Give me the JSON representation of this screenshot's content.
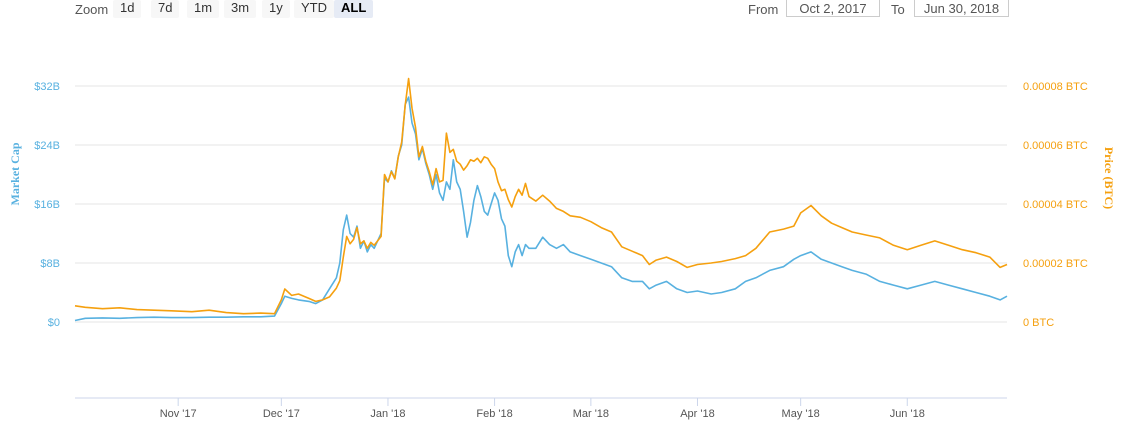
{
  "zoom": {
    "label": "Zoom",
    "buttons": [
      {
        "label": "1d",
        "active": false
      },
      {
        "label": "7d",
        "active": false
      },
      {
        "label": "1m",
        "active": false
      },
      {
        "label": "3m",
        "active": false
      },
      {
        "label": "1y",
        "active": false
      },
      {
        "label": "YTD",
        "active": false
      },
      {
        "label": "ALL",
        "active": true
      }
    ]
  },
  "range": {
    "from_label": "From",
    "from_value": "Oct 2, 2017",
    "to_label": "To",
    "to_value": "Jun 30, 2018"
  },
  "colors": {
    "market_cap": "#58b1e0",
    "price": "#f5a00f",
    "grid": "#e6e6e6",
    "axis": "#ccd6eb"
  },
  "chart_data": {
    "type": "line",
    "x_range": [
      "2017-10-02",
      "2018-06-30"
    ],
    "x_ticks": [
      {
        "date": "2017-11-01",
        "label": "Nov '17"
      },
      {
        "date": "2017-12-01",
        "label": "Dec '17"
      },
      {
        "date": "2018-01-01",
        "label": "Jan '18"
      },
      {
        "date": "2018-02-01",
        "label": "Feb '18"
      },
      {
        "date": "2018-03-01",
        "label": "Mar '18"
      },
      {
        "date": "2018-04-01",
        "label": "Apr '18"
      },
      {
        "date": "2018-05-01",
        "label": "May '18"
      },
      {
        "date": "2018-06-01",
        "label": "Jun '18"
      }
    ],
    "y_left": {
      "title": "Market Cap",
      "unit": "B USD",
      "range": [
        0,
        32
      ],
      "ticks": [
        {
          "value": 0,
          "label": "$0"
        },
        {
          "value": 8,
          "label": "$8B"
        },
        {
          "value": 16,
          "label": "$16B"
        },
        {
          "value": 24,
          "label": "$24B"
        },
        {
          "value": 32,
          "label": "$32B"
        }
      ]
    },
    "y_right": {
      "title": "Price (BTC)",
      "unit": "BTC",
      "range": [
        0,
        8e-05
      ],
      "ticks": [
        {
          "value": 0,
          "label": "0 BTC"
        },
        {
          "value": 2e-05,
          "label": "0.00002 BTC"
        },
        {
          "value": 4e-05,
          "label": "0.00004 BTC"
        },
        {
          "value": 6e-05,
          "label": "0.00006 BTC"
        },
        {
          "value": 8e-05,
          "label": "0.00008 BTC"
        }
      ]
    },
    "grid": true,
    "legend": "none",
    "series": [
      {
        "axis": "left",
        "points": [
          [
            "2017-10-02",
            0.2
          ],
          [
            "2017-10-05",
            0.5
          ],
          [
            "2017-10-10",
            0.55
          ],
          [
            "2017-10-15",
            0.5
          ],
          [
            "2017-10-20",
            0.6
          ],
          [
            "2017-10-25",
            0.65
          ],
          [
            "2017-10-30",
            0.6
          ],
          [
            "2017-11-05",
            0.6
          ],
          [
            "2017-11-10",
            0.65
          ],
          [
            "2017-11-15",
            0.65
          ],
          [
            "2017-11-20",
            0.7
          ],
          [
            "2017-11-25",
            0.7
          ],
          [
            "2017-11-29",
            0.8
          ],
          [
            "2017-12-01",
            2.5
          ],
          [
            "2017-12-02",
            3.5
          ],
          [
            "2017-12-04",
            3.2
          ],
          [
            "2017-12-06",
            3.0
          ],
          [
            "2017-12-09",
            2.8
          ],
          [
            "2017-12-11",
            2.5
          ],
          [
            "2017-12-13",
            3.0
          ],
          [
            "2017-12-15",
            4.5
          ],
          [
            "2017-12-17",
            6.0
          ],
          [
            "2017-12-18",
            8.0
          ],
          [
            "2017-12-19",
            12.5
          ],
          [
            "2017-12-20",
            14.5
          ],
          [
            "2017-12-21",
            12.0
          ],
          [
            "2017-12-22",
            11.5
          ],
          [
            "2017-12-23",
            13.0
          ],
          [
            "2017-12-24",
            10.0
          ],
          [
            "2017-12-25",
            11.0
          ],
          [
            "2017-12-26",
            9.5
          ],
          [
            "2017-12-27",
            10.5
          ],
          [
            "2017-12-28",
            10.0
          ],
          [
            "2017-12-29",
            11.0
          ],
          [
            "2017-12-30",
            12.0
          ],
          [
            "2017-12-31",
            19.5
          ],
          [
            "2018-01-01",
            19.0
          ],
          [
            "2018-01-02",
            20.5
          ],
          [
            "2018-01-03",
            19.5
          ],
          [
            "2018-01-04",
            22.5
          ],
          [
            "2018-01-05",
            24.0
          ],
          [
            "2018-01-06",
            29.5
          ],
          [
            "2018-01-07",
            30.5
          ],
          [
            "2018-01-08",
            27.0
          ],
          [
            "2018-01-09",
            25.5
          ],
          [
            "2018-01-10",
            22.0
          ],
          [
            "2018-01-11",
            23.5
          ],
          [
            "2018-01-12",
            21.5
          ],
          [
            "2018-01-13",
            20.0
          ],
          [
            "2018-01-14",
            18.0
          ],
          [
            "2018-01-15",
            20.0
          ],
          [
            "2018-01-16",
            17.5
          ],
          [
            "2018-01-17",
            16.5
          ],
          [
            "2018-01-18",
            19.0
          ],
          [
            "2018-01-19",
            18.0
          ],
          [
            "2018-01-20",
            22.0
          ],
          [
            "2018-01-21",
            19.0
          ],
          [
            "2018-01-22",
            18.0
          ],
          [
            "2018-01-23",
            15.0
          ],
          [
            "2018-01-24",
            11.5
          ],
          [
            "2018-01-25",
            13.5
          ],
          [
            "2018-01-26",
            16.5
          ],
          [
            "2018-01-27",
            18.5
          ],
          [
            "2018-01-28",
            17.0
          ],
          [
            "2018-01-29",
            15.0
          ],
          [
            "2018-01-30",
            14.5
          ],
          [
            "2018-01-31",
            16.0
          ],
          [
            "2018-02-01",
            17.5
          ],
          [
            "2018-02-02",
            16.5
          ],
          [
            "2018-02-03",
            14.0
          ],
          [
            "2018-02-04",
            13.0
          ],
          [
            "2018-02-05",
            9.0
          ],
          [
            "2018-02-06",
            7.5
          ],
          [
            "2018-02-07",
            9.5
          ],
          [
            "2018-02-08",
            10.5
          ],
          [
            "2018-02-09",
            9.0
          ],
          [
            "2018-02-10",
            10.5
          ],
          [
            "2018-02-11",
            10.0
          ],
          [
            "2018-02-13",
            10.0
          ],
          [
            "2018-02-15",
            11.5
          ],
          [
            "2018-02-17",
            10.5
          ],
          [
            "2018-02-19",
            10.0
          ],
          [
            "2018-02-21",
            10.5
          ],
          [
            "2018-02-23",
            9.5
          ],
          [
            "2018-02-26",
            9.0
          ],
          [
            "2018-03-01",
            8.5
          ],
          [
            "2018-03-04",
            8.0
          ],
          [
            "2018-03-07",
            7.5
          ],
          [
            "2018-03-10",
            6.0
          ],
          [
            "2018-03-13",
            5.5
          ],
          [
            "2018-03-16",
            5.5
          ],
          [
            "2018-03-18",
            4.5
          ],
          [
            "2018-03-20",
            5.0
          ],
          [
            "2018-03-23",
            5.5
          ],
          [
            "2018-03-26",
            4.5
          ],
          [
            "2018-03-29",
            4.0
          ],
          [
            "2018-04-01",
            4.2
          ],
          [
            "2018-04-05",
            3.8
          ],
          [
            "2018-04-08",
            4.0
          ],
          [
            "2018-04-12",
            4.5
          ],
          [
            "2018-04-15",
            5.5
          ],
          [
            "2018-04-18",
            6.0
          ],
          [
            "2018-04-22",
            7.0
          ],
          [
            "2018-04-26",
            7.5
          ],
          [
            "2018-04-29",
            8.5
          ],
          [
            "2018-05-01",
            9.0
          ],
          [
            "2018-05-04",
            9.5
          ],
          [
            "2018-05-07",
            8.5
          ],
          [
            "2018-05-10",
            8.0
          ],
          [
            "2018-05-13",
            7.5
          ],
          [
            "2018-05-16",
            7.0
          ],
          [
            "2018-05-20",
            6.5
          ],
          [
            "2018-05-24",
            5.5
          ],
          [
            "2018-05-28",
            5.0
          ],
          [
            "2018-06-01",
            4.5
          ],
          [
            "2018-06-05",
            5.0
          ],
          [
            "2018-06-09",
            5.5
          ],
          [
            "2018-06-13",
            5.0
          ],
          [
            "2018-06-17",
            4.5
          ],
          [
            "2018-06-21",
            4.0
          ],
          [
            "2018-06-25",
            3.5
          ],
          [
            "2018-06-28",
            3.0
          ],
          [
            "2018-06-30",
            3.5
          ]
        ]
      },
      {
        "axis": "right",
        "points": [
          [
            "2017-10-02",
            5.5e-06
          ],
          [
            "2017-10-05",
            5e-06
          ],
          [
            "2017-10-10",
            4.5e-06
          ],
          [
            "2017-10-15",
            4.8e-06
          ],
          [
            "2017-10-20",
            4.2e-06
          ],
          [
            "2017-10-25",
            4e-06
          ],
          [
            "2017-10-30",
            3.8e-06
          ],
          [
            "2017-11-05",
            3.5e-06
          ],
          [
            "2017-11-10",
            4e-06
          ],
          [
            "2017-11-15",
            3.2e-06
          ],
          [
            "2017-11-20",
            2.8e-06
          ],
          [
            "2017-11-25",
            3e-06
          ],
          [
            "2017-11-29",
            2.8e-06
          ],
          [
            "2017-12-01",
            7.5e-06
          ],
          [
            "2017-12-02",
            1.12e-05
          ],
          [
            "2017-12-04",
            9e-06
          ],
          [
            "2017-12-06",
            9.5e-06
          ],
          [
            "2017-12-09",
            8e-06
          ],
          [
            "2017-12-11",
            7e-06
          ],
          [
            "2017-12-13",
            7.5e-06
          ],
          [
            "2017-12-15",
            8.5e-06
          ],
          [
            "2017-12-17",
            1.15e-05
          ],
          [
            "2017-12-18",
            1.4e-05
          ],
          [
            "2017-12-19",
            2.2e-05
          ],
          [
            "2017-12-20",
            2.9e-05
          ],
          [
            "2017-12-21",
            2.65e-05
          ],
          [
            "2017-12-22",
            2.8e-05
          ],
          [
            "2017-12-23",
            3.2e-05
          ],
          [
            "2017-12-24",
            2.65e-05
          ],
          [
            "2017-12-25",
            2.75e-05
          ],
          [
            "2017-12-26",
            2.5e-05
          ],
          [
            "2017-12-27",
            2.7e-05
          ],
          [
            "2017-12-28",
            2.6e-05
          ],
          [
            "2017-12-29",
            2.75e-05
          ],
          [
            "2017-12-30",
            2.9e-05
          ],
          [
            "2017-12-31",
            5e-05
          ],
          [
            "2018-01-01",
            4.75e-05
          ],
          [
            "2018-01-02",
            5.1e-05
          ],
          [
            "2018-01-03",
            4.85e-05
          ],
          [
            "2018-01-04",
            5.6e-05
          ],
          [
            "2018-01-05",
            6.1e-05
          ],
          [
            "2018-01-06",
            7.35e-05
          ],
          [
            "2018-01-07",
            8.25e-05
          ],
          [
            "2018-01-08",
            7.25e-05
          ],
          [
            "2018-01-09",
            6.6e-05
          ],
          [
            "2018-01-10",
            5.6e-05
          ],
          [
            "2018-01-11",
            5.95e-05
          ],
          [
            "2018-01-12",
            5.45e-05
          ],
          [
            "2018-01-13",
            5.1e-05
          ],
          [
            "2018-01-14",
            4.65e-05
          ],
          [
            "2018-01-15",
            5.2e-05
          ],
          [
            "2018-01-16",
            4.75e-05
          ],
          [
            "2018-01-17",
            4.8e-05
          ],
          [
            "2018-01-18",
            6.4e-05
          ],
          [
            "2018-01-19",
            5.75e-05
          ],
          [
            "2018-01-20",
            5.85e-05
          ],
          [
            "2018-01-21",
            5.45e-05
          ],
          [
            "2018-01-22",
            5.35e-05
          ],
          [
            "2018-01-23",
            5.15e-05
          ],
          [
            "2018-01-24",
            5.3e-05
          ],
          [
            "2018-01-25",
            5.5e-05
          ],
          [
            "2018-01-26",
            5.45e-05
          ],
          [
            "2018-01-27",
            5.55e-05
          ],
          [
            "2018-01-28",
            5.4e-05
          ],
          [
            "2018-01-29",
            5.6e-05
          ],
          [
            "2018-01-30",
            5.55e-05
          ],
          [
            "2018-01-31",
            5.35e-05
          ],
          [
            "2018-02-01",
            5.2e-05
          ],
          [
            "2018-02-02",
            4.75e-05
          ],
          [
            "2018-02-03",
            4.45e-05
          ],
          [
            "2018-02-04",
            4.5e-05
          ],
          [
            "2018-02-05",
            4.15e-05
          ],
          [
            "2018-02-06",
            3.9e-05
          ],
          [
            "2018-02-07",
            4.25e-05
          ],
          [
            "2018-02-08",
            4.5e-05
          ],
          [
            "2018-02-09",
            4.3e-05
          ],
          [
            "2018-02-10",
            4.7e-05
          ],
          [
            "2018-02-11",
            4.25e-05
          ],
          [
            "2018-02-13",
            4.1e-05
          ],
          [
            "2018-02-15",
            4.3e-05
          ],
          [
            "2018-02-17",
            4.1e-05
          ],
          [
            "2018-02-19",
            3.85e-05
          ],
          [
            "2018-02-21",
            3.75e-05
          ],
          [
            "2018-02-23",
            3.6e-05
          ],
          [
            "2018-02-26",
            3.55e-05
          ],
          [
            "2018-03-01",
            3.4e-05
          ],
          [
            "2018-03-04",
            3.2e-05
          ],
          [
            "2018-03-07",
            3.05e-05
          ],
          [
            "2018-03-10",
            2.55e-05
          ],
          [
            "2018-03-13",
            2.4e-05
          ],
          [
            "2018-03-16",
            2.25e-05
          ],
          [
            "2018-03-18",
            1.95e-05
          ],
          [
            "2018-03-20",
            2.1e-05
          ],
          [
            "2018-03-23",
            2.2e-05
          ],
          [
            "2018-03-26",
            2.05e-05
          ],
          [
            "2018-03-29",
            1.85e-05
          ],
          [
            "2018-04-01",
            1.95e-05
          ],
          [
            "2018-04-05",
            2e-05
          ],
          [
            "2018-04-08",
            2.05e-05
          ],
          [
            "2018-04-12",
            2.15e-05
          ],
          [
            "2018-04-15",
            2.25e-05
          ],
          [
            "2018-04-18",
            2.5e-05
          ],
          [
            "2018-04-22",
            3.05e-05
          ],
          [
            "2018-04-26",
            3.15e-05
          ],
          [
            "2018-04-29",
            3.25e-05
          ],
          [
            "2018-05-01",
            3.7e-05
          ],
          [
            "2018-05-04",
            3.95e-05
          ],
          [
            "2018-05-07",
            3.6e-05
          ],
          [
            "2018-05-10",
            3.35e-05
          ],
          [
            "2018-05-13",
            3.2e-05
          ],
          [
            "2018-05-16",
            3.05e-05
          ],
          [
            "2018-05-20",
            2.95e-05
          ],
          [
            "2018-05-24",
            2.85e-05
          ],
          [
            "2018-05-28",
            2.6e-05
          ],
          [
            "2018-06-01",
            2.45e-05
          ],
          [
            "2018-06-05",
            2.6e-05
          ],
          [
            "2018-06-09",
            2.75e-05
          ],
          [
            "2018-06-13",
            2.6e-05
          ],
          [
            "2018-06-17",
            2.45e-05
          ],
          [
            "2018-06-21",
            2.35e-05
          ],
          [
            "2018-06-25",
            2.2e-05
          ],
          [
            "2018-06-28",
            1.85e-05
          ],
          [
            "2018-06-30",
            1.95e-05
          ]
        ]
      }
    ]
  }
}
